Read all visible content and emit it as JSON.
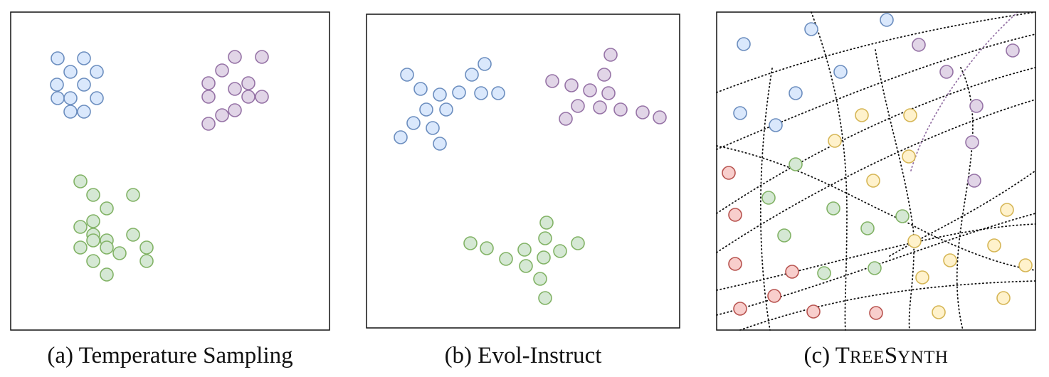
{
  "colors": {
    "blue": {
      "fill": "#dae8fc",
      "stroke": "#6c8ebf"
    },
    "purple": {
      "fill": "#e1d5e7",
      "stroke": "#9673a6"
    },
    "green": {
      "fill": "#d5e8d4",
      "stroke": "#82b366"
    },
    "red": {
      "fill": "#f8cecc",
      "stroke": "#b85450"
    },
    "yellow": {
      "fill": "#fff2cc",
      "stroke": "#d6b656"
    },
    "frame": "#111111",
    "grid": "#111111",
    "grid_accent": "#9673a6"
  },
  "panels": [
    {
      "id": "a",
      "caption": "(a) Temperature Sampling"
    },
    {
      "id": "b",
      "caption": "(b) Evol-Instruct"
    },
    {
      "id": "c",
      "caption_prefix": "(c) ",
      "caption_name": [
        {
          "text": "T",
          "size": "big"
        },
        {
          "text": "REE",
          "size": "small"
        },
        {
          "text": "S",
          "size": "big"
        },
        {
          "text": "YNTH",
          "size": "small"
        }
      ]
    }
  ]
}
